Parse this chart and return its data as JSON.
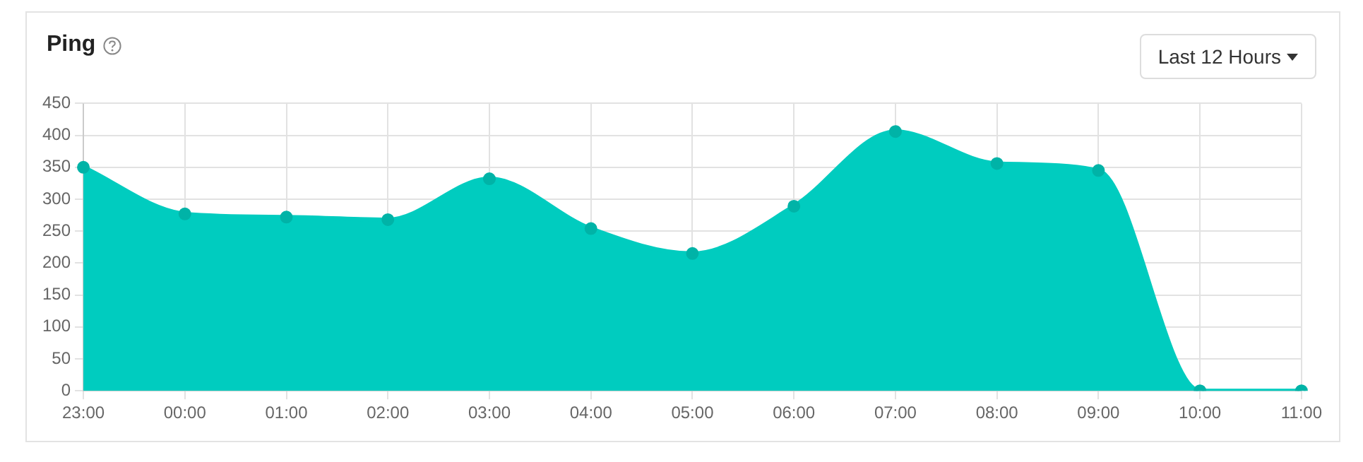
{
  "chart_data": {
    "type": "area",
    "title": "Ping",
    "annotations": [
      "Last 12 Hours"
    ],
    "categories": [
      "23:00",
      "00:00",
      "01:00",
      "02:00",
      "03:00",
      "04:00",
      "05:00",
      "06:00",
      "07:00",
      "08:00",
      "09:00",
      "10:00",
      "11:00"
    ],
    "series": [
      {
        "color": "#00ccbf",
        "values": [
          350,
          277,
          272,
          268,
          332,
          254,
          215,
          289,
          406,
          356,
          345,
          0,
          0
        ]
      }
    ],
    "ylim": [
      0,
      450
    ],
    "yticks": [
      0,
      50,
      100,
      150,
      200,
      250,
      300,
      350,
      400,
      450
    ],
    "grid": true,
    "marker": "circle",
    "legend": false
  }
}
